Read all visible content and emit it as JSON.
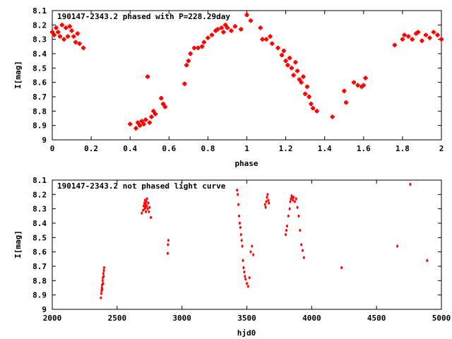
{
  "chart_data": [
    {
      "type": "scatter",
      "title": "190147-2343.2 phased with P=228.29day",
      "xlabel": "phase",
      "ylabel": "I[mag]",
      "xlim": [
        0,
        2
      ],
      "ylim": [
        9,
        8.1
      ],
      "xticks": [
        "0",
        "0.2",
        "0.4",
        "0.6",
        "0.8",
        "1",
        "1.2",
        "1.4",
        "1.6",
        "1.8",
        "2"
      ],
      "yticks": [
        "8.1",
        "8.2",
        "8.3",
        "8.4",
        "8.5",
        "8.6",
        "8.7",
        "8.8",
        "8.9",
        "9"
      ],
      "marker_color": "#ff0000",
      "marker": "plus-large",
      "series": [
        {
          "x": [
            0.0,
            0.01,
            0.02,
            0.03,
            0.04,
            0.05,
            0.06,
            0.07,
            0.08,
            0.09,
            0.1,
            0.11,
            0.12,
            0.13,
            0.14,
            0.16,
            0.4,
            0.43,
            0.44,
            0.45,
            0.46,
            0.47,
            0.48,
            0.49,
            0.5,
            0.51,
            0.52,
            0.53,
            0.56,
            0.57,
            0.58,
            0.68,
            0.69,
            0.7,
            0.71,
            0.73,
            0.75,
            0.77,
            0.78,
            0.8,
            0.82,
            0.84,
            0.85,
            0.87,
            0.88,
            0.89,
            0.9,
            0.92,
            0.94,
            0.97,
            1.0,
            1.02,
            1.07,
            1.08,
            1.1,
            1.12,
            1.13,
            1.16,
            1.18,
            1.19,
            1.2,
            1.21,
            1.22,
            1.23,
            1.24,
            1.25,
            1.26,
            1.27,
            1.28,
            1.29,
            1.3,
            1.31,
            1.32,
            1.33,
            1.34,
            1.36,
            1.44,
            1.5,
            1.51,
            1.55,
            1.57,
            1.59,
            1.6,
            1.61,
            1.76,
            1.8,
            1.81,
            1.83,
            1.85,
            1.87,
            1.88,
            1.9,
            1.92,
            1.94,
            1.96,
            1.98,
            2.0
          ],
          "y": [
            8.25,
            8.27,
            8.22,
            8.25,
            8.28,
            8.2,
            8.3,
            8.22,
            8.28,
            8.21,
            8.24,
            8.28,
            8.32,
            8.26,
            8.33,
            8.36,
            8.89,
            8.92,
            8.88,
            8.9,
            8.87,
            8.89,
            8.86,
            8.56,
            8.88,
            8.84,
            8.8,
            8.82,
            8.71,
            8.75,
            8.77,
            8.61,
            8.48,
            8.45,
            8.4,
            8.36,
            8.36,
            8.35,
            8.32,
            8.29,
            8.27,
            8.24,
            8.23,
            8.22,
            8.25,
            8.2,
            8.22,
            8.24,
            8.21,
            8.23,
            8.13,
            8.17,
            8.22,
            8.3,
            8.3,
            8.28,
            8.33,
            8.36,
            8.41,
            8.38,
            8.45,
            8.48,
            8.43,
            8.5,
            8.55,
            8.46,
            8.52,
            8.58,
            8.6,
            8.56,
            8.68,
            8.63,
            8.7,
            8.75,
            8.78,
            8.8,
            8.84,
            8.66,
            8.74,
            8.6,
            8.62,
            8.63,
            8.62,
            8.57,
            8.34,
            8.3,
            8.27,
            8.28,
            8.3,
            8.26,
            8.25,
            8.31,
            8.27,
            8.29,
            8.25,
            8.27,
            8.3
          ]
        }
      ]
    },
    {
      "type": "scatter",
      "title": "190147-2343.2 not phased light curve",
      "xlabel": "hjd0",
      "ylabel": "I[mag]",
      "xlim": [
        2000,
        5000
      ],
      "ylim": [
        9,
        8.1
      ],
      "xticks": [
        "2000",
        "2500",
        "3000",
        "3500",
        "4000",
        "4500",
        "5000"
      ],
      "yticks": [
        "8.1",
        "8.2",
        "8.3",
        "8.4",
        "8.5",
        "8.6",
        "8.7",
        "8.8",
        "8.9",
        "9"
      ],
      "marker_color": "#ff0000",
      "marker": "dot",
      "series": [
        {
          "x": [
            2375,
            2378,
            2380,
            2382,
            2384,
            2386,
            2388,
            2390,
            2392,
            2394,
            2396,
            2398,
            2400,
            2690,
            2700,
            2705,
            2710,
            2712,
            2715,
            2718,
            2720,
            2722,
            2725,
            2728,
            2730,
            2735,
            2740,
            2745,
            2750,
            2760,
            2890,
            2892,
            2895,
            3425,
            3430,
            3435,
            3440,
            3445,
            3450,
            3455,
            3460,
            3465,
            3470,
            3475,
            3480,
            3485,
            3490,
            3500,
            3510,
            3520,
            3530,
            3540,
            3550,
            3640,
            3645,
            3650,
            3655,
            3660,
            3665,
            3670,
            3800,
            3805,
            3810,
            3820,
            3830,
            3835,
            3840,
            3845,
            3850,
            3855,
            3860,
            3870,
            3880,
            3890,
            3900,
            3910,
            3920,
            3930,
            3940,
            4230,
            4660,
            4760,
            4890
          ],
          "y": [
            8.92,
            8.89,
            8.87,
            8.85,
            8.83,
            8.86,
            8.8,
            8.78,
            8.82,
            8.75,
            8.77,
            8.73,
            8.71,
            8.33,
            8.31,
            8.28,
            8.26,
            8.3,
            8.24,
            8.29,
            8.27,
            8.32,
            8.25,
            8.28,
            8.23,
            8.3,
            8.26,
            8.32,
            8.29,
            8.36,
            8.61,
            8.55,
            8.52,
            8.17,
            8.2,
            8.27,
            8.35,
            8.4,
            8.43,
            8.48,
            8.52,
            8.56,
            8.66,
            8.71,
            8.74,
            8.77,
            8.79,
            8.82,
            8.84,
            8.78,
            8.6,
            8.56,
            8.62,
            8.27,
            8.29,
            8.25,
            8.22,
            8.2,
            8.24,
            8.26,
            8.48,
            8.45,
            8.42,
            8.35,
            8.3,
            8.25,
            8.23,
            8.21,
            8.22,
            8.24,
            8.22,
            8.25,
            8.23,
            8.29,
            8.35,
            8.45,
            8.55,
            8.59,
            8.64,
            8.71,
            8.56,
            8.13,
            8.66
          ]
        }
      ]
    }
  ]
}
